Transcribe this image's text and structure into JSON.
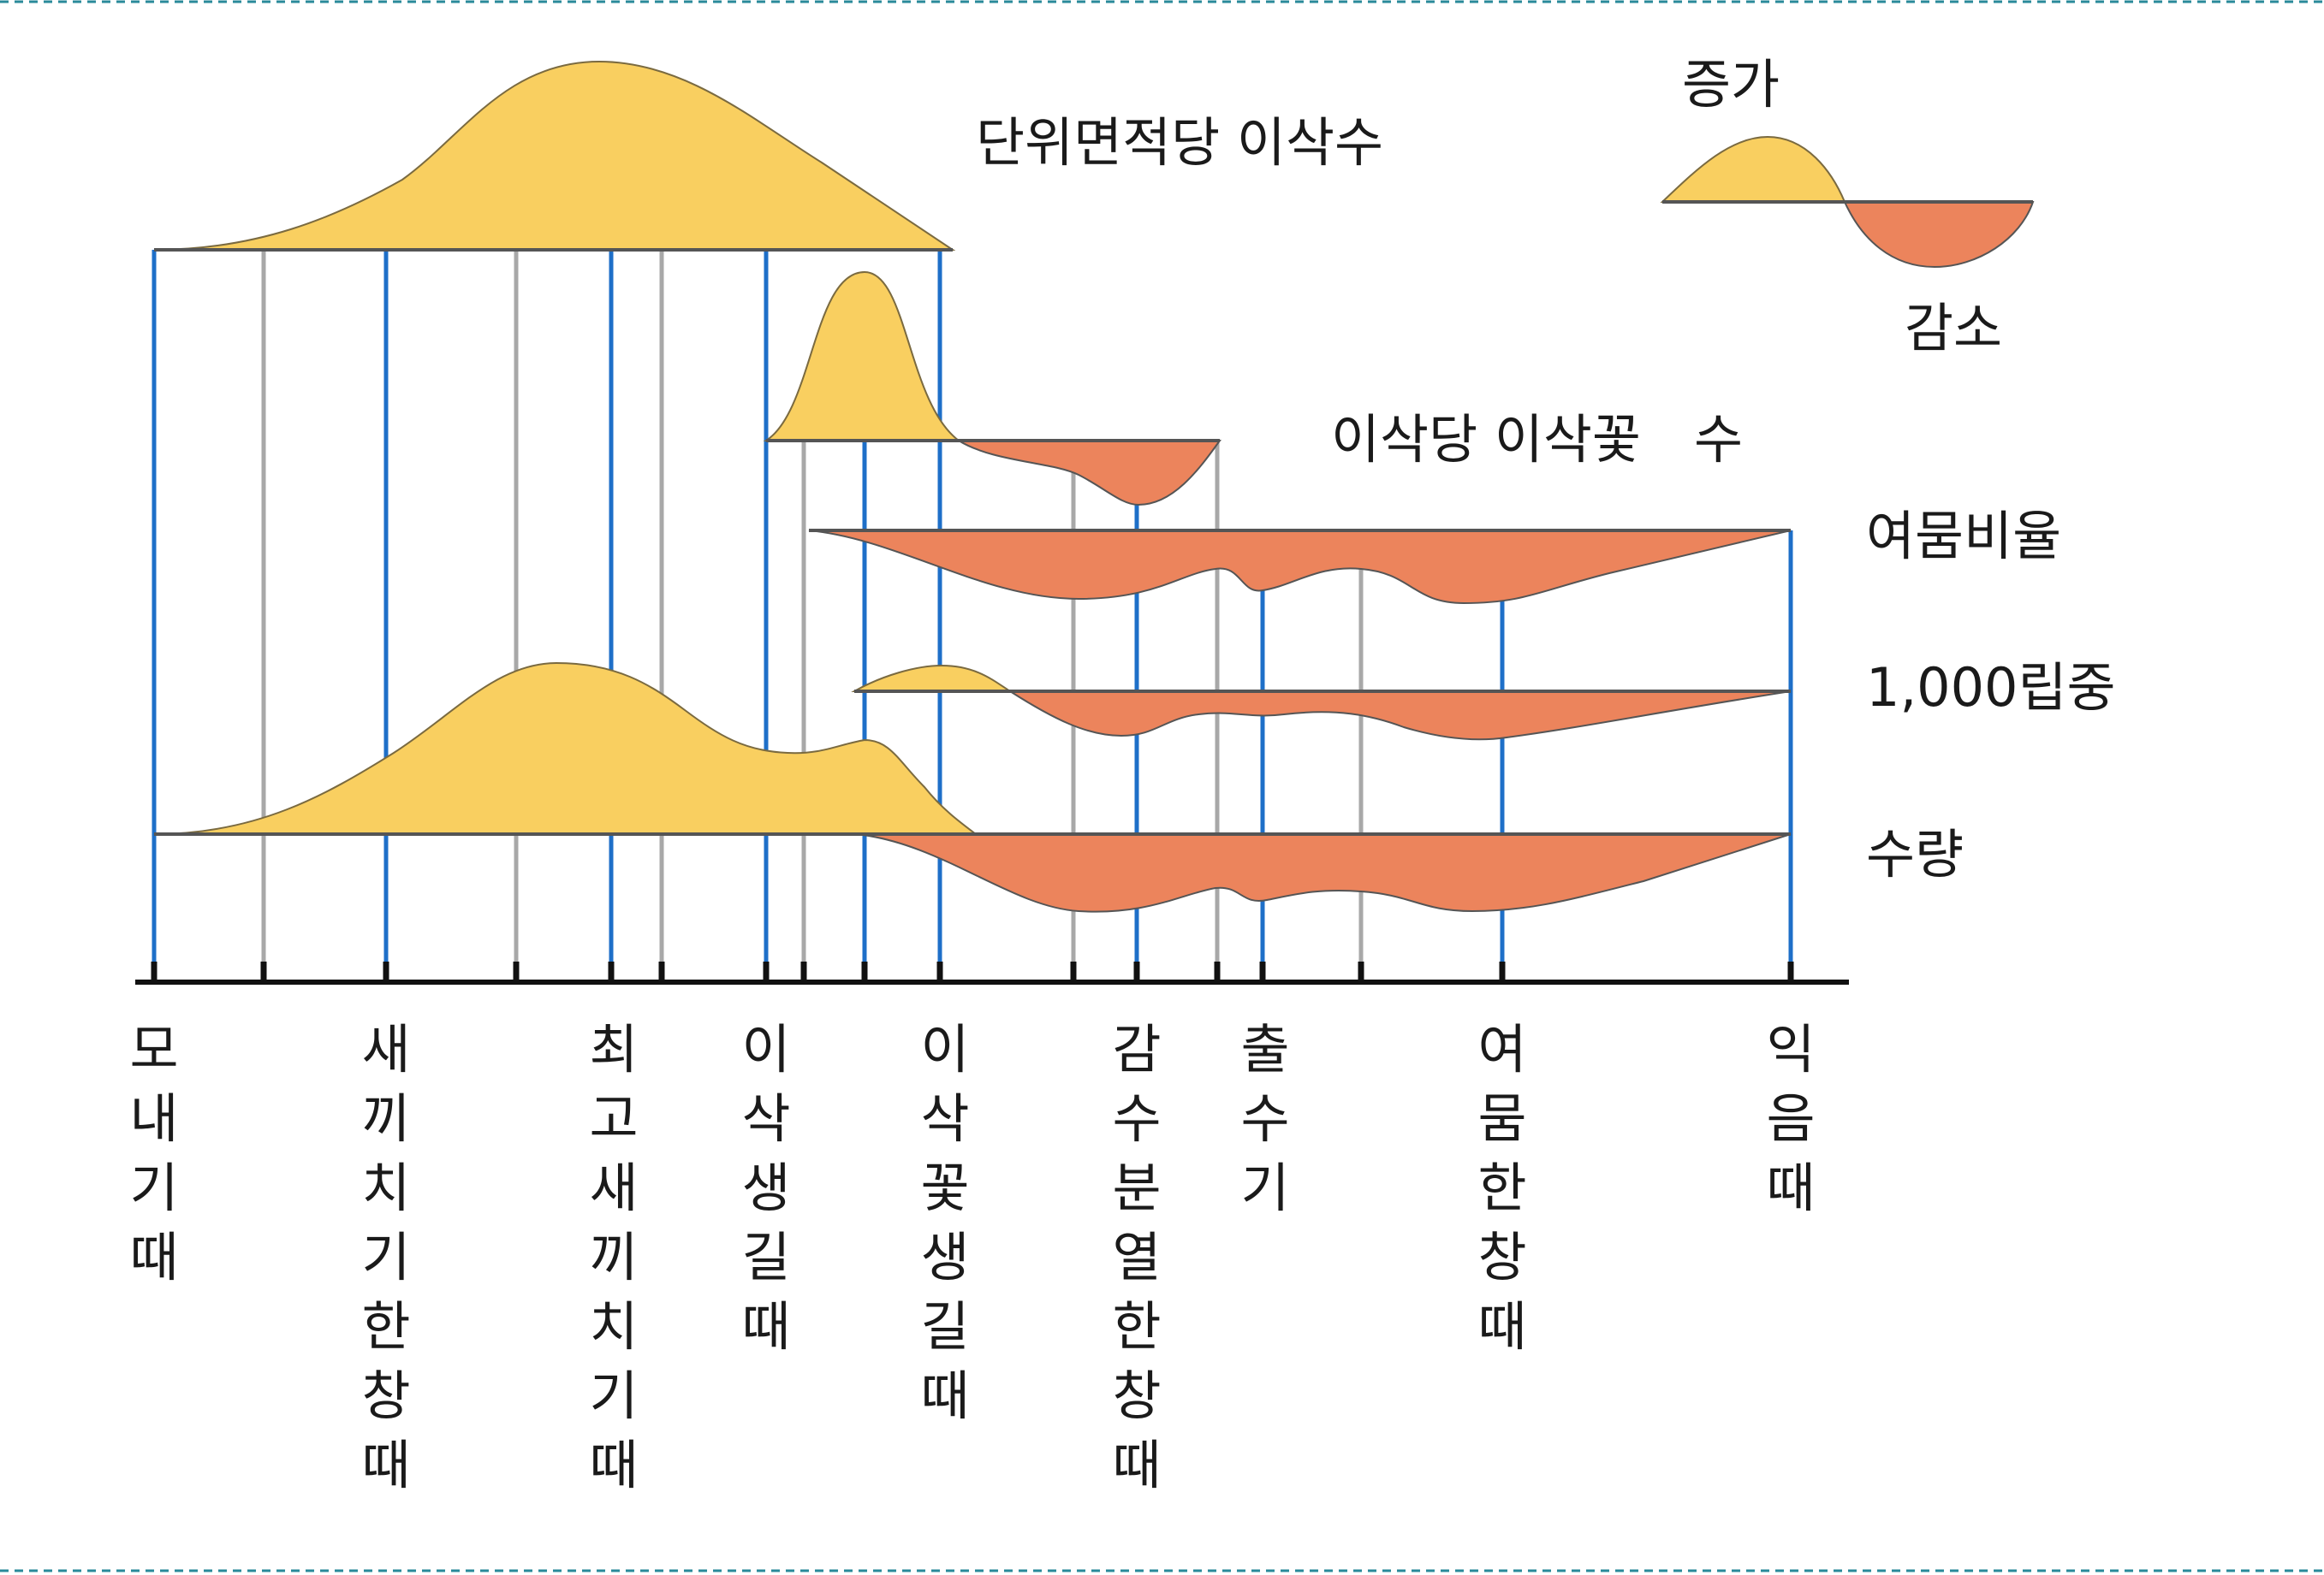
{
  "legend": {
    "increase": "증가",
    "decrease": "감소"
  },
  "rows": [
    {
      "key": "panicles_per_area",
      "label": "단위면적당 이삭수"
    },
    {
      "key": "spikelets_per_panicle",
      "label": "이삭당 이삭꽃　수"
    },
    {
      "key": "ripening_ratio",
      "label": "여뭄비율"
    },
    {
      "key": "thousand_grain_weight",
      "label": "1,000립중"
    },
    {
      "key": "yield",
      "label": "수량"
    }
  ],
  "stages": [
    {
      "key": "transplanting",
      "label": "모내기때"
    },
    {
      "key": "peak_tillering",
      "label": "새끼치기한창때"
    },
    {
      "key": "max_tillering",
      "label": "최고새끼치기때"
    },
    {
      "key": "panicle_initiation",
      "label": "이삭생길때"
    },
    {
      "key": "spikelet_initiation",
      "label": "이삭꽃생길때"
    },
    {
      "key": "meiosis_peak",
      "label": "감수분열한창때"
    },
    {
      "key": "heading",
      "label": "출수기"
    },
    {
      "key": "ripening_peak",
      "label": "여뭄한창때"
    },
    {
      "key": "maturity",
      "label": "익음때"
    }
  ],
  "colors": {
    "increase": "#F9CF60",
    "decrease": "#EC845C",
    "stage_line": "#1E6FC8",
    "minor_line": "#A8A8A8",
    "axis": "#111111"
  }
}
